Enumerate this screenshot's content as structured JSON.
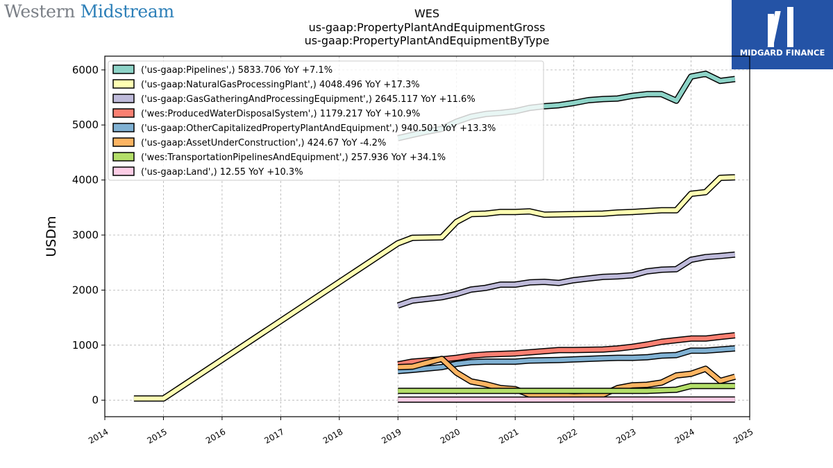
{
  "branding": {
    "left_logo": {
      "part1": "Western ",
      "part2": "Midstream"
    },
    "right_logo": {
      "text": "MIDGARD FINANCE",
      "bg_color": "#2453a6"
    }
  },
  "chart_data": {
    "type": "line",
    "title": "WES",
    "subtitle_lines": [
      "us-gaap:PropertyPlantAndEquipmentGross",
      "us-gaap:PropertyPlantAndEquipmentByType"
    ],
    "xlabel": "",
    "ylabel": "USDm",
    "xlim": [
      "2014-01-01",
      "2025-01-01"
    ],
    "ylim": [
      -300,
      6250
    ],
    "x_ticks": [
      "2014",
      "2015",
      "2016",
      "2017",
      "2018",
      "2019",
      "2020",
      "2021",
      "2022",
      "2023",
      "2024",
      "2025"
    ],
    "y_ticks": [
      0,
      1000,
      2000,
      3000,
      4000,
      5000,
      6000
    ],
    "grid": true,
    "legend_position": "top-left",
    "series": [
      {
        "name": "('us-gaap:Pipelines',) 5833.706 YoY +7.1%",
        "color": "#8dd3c7",
        "points": [
          [
            "2019-01-01",
            4760
          ],
          [
            "2019-04-01",
            4820
          ],
          [
            "2019-07-01",
            4880
          ],
          [
            "2019-10-01",
            4930
          ],
          [
            "2020-01-01",
            5060
          ],
          [
            "2020-04-01",
            5150
          ],
          [
            "2020-07-01",
            5200
          ],
          [
            "2020-10-01",
            5220
          ],
          [
            "2021-01-01",
            5250
          ],
          [
            "2021-04-01",
            5310
          ],
          [
            "2021-07-01",
            5340
          ],
          [
            "2021-10-01",
            5360
          ],
          [
            "2022-01-01",
            5400
          ],
          [
            "2022-04-01",
            5450
          ],
          [
            "2022-07-01",
            5470
          ],
          [
            "2022-10-01",
            5480
          ],
          [
            "2023-01-01",
            5530
          ],
          [
            "2023-04-01",
            5560
          ],
          [
            "2023-07-01",
            5560
          ],
          [
            "2023-10-01",
            5440
          ],
          [
            "2024-01-01",
            5880
          ],
          [
            "2024-04-01",
            5930
          ],
          [
            "2024-07-01",
            5800
          ],
          [
            "2024-10-01",
            5834
          ]
        ]
      },
      {
        "name": "('us-gaap:NaturalGasProcessingPlant',) 4048.496 YoY +17.3%",
        "color": "#ffffb3",
        "points": [
          [
            "2014-07-01",
            30
          ],
          [
            "2015-01-01",
            30
          ],
          [
            "2019-01-01",
            2850
          ],
          [
            "2019-04-01",
            2950
          ],
          [
            "2019-10-01",
            2960
          ],
          [
            "2020-01-01",
            3240
          ],
          [
            "2020-04-01",
            3380
          ],
          [
            "2020-07-01",
            3390
          ],
          [
            "2020-10-01",
            3420
          ],
          [
            "2021-01-01",
            3420
          ],
          [
            "2021-04-01",
            3430
          ],
          [
            "2021-07-01",
            3370
          ],
          [
            "2022-07-01",
            3390
          ],
          [
            "2022-10-01",
            3410
          ],
          [
            "2023-01-01",
            3420
          ],
          [
            "2023-07-01",
            3450
          ],
          [
            "2023-10-01",
            3450
          ],
          [
            "2024-01-01",
            3750
          ],
          [
            "2024-04-01",
            3780
          ],
          [
            "2024-07-01",
            4040
          ],
          [
            "2024-10-01",
            4048
          ]
        ]
      },
      {
        "name": "('us-gaap:GasGatheringAndProcessingEquipment',) 2645.117 YoY +11.6%",
        "color": "#bebada",
        "points": [
          [
            "2019-01-01",
            1720
          ],
          [
            "2019-04-01",
            1810
          ],
          [
            "2019-10-01",
            1870
          ],
          [
            "2020-01-01",
            1930
          ],
          [
            "2020-04-01",
            2010
          ],
          [
            "2020-07-01",
            2040
          ],
          [
            "2020-10-01",
            2100
          ],
          [
            "2021-01-01",
            2100
          ],
          [
            "2021-04-01",
            2140
          ],
          [
            "2021-07-01",
            2150
          ],
          [
            "2021-10-01",
            2130
          ],
          [
            "2022-01-01",
            2180
          ],
          [
            "2022-04-01",
            2210
          ],
          [
            "2022-07-01",
            2240
          ],
          [
            "2022-10-01",
            2250
          ],
          [
            "2023-01-01",
            2270
          ],
          [
            "2023-04-01",
            2340
          ],
          [
            "2023-07-01",
            2370
          ],
          [
            "2023-10-01",
            2380
          ],
          [
            "2024-01-01",
            2550
          ],
          [
            "2024-04-01",
            2600
          ],
          [
            "2024-07-01",
            2620
          ],
          [
            "2024-10-01",
            2645
          ]
        ]
      },
      {
        "name": "('wes:ProducedWaterDisposalSystem',) 1179.217 YoY +10.9%",
        "color": "#fb8072",
        "points": [
          [
            "2019-01-01",
            650
          ],
          [
            "2019-04-01",
            700
          ],
          [
            "2019-10-01",
            740
          ],
          [
            "2020-01-01",
            770
          ],
          [
            "2020-04-01",
            810
          ],
          [
            "2020-07-01",
            830
          ],
          [
            "2020-10-01",
            840
          ],
          [
            "2021-01-01",
            850
          ],
          [
            "2021-04-01",
            870
          ],
          [
            "2021-07-01",
            890
          ],
          [
            "2021-10-01",
            910
          ],
          [
            "2022-01-01",
            910
          ],
          [
            "2022-07-01",
            920
          ],
          [
            "2022-10-01",
            940
          ],
          [
            "2023-01-01",
            970
          ],
          [
            "2023-04-01",
            1010
          ],
          [
            "2023-07-01",
            1060
          ],
          [
            "2023-10-01",
            1090
          ],
          [
            "2024-01-01",
            1120
          ],
          [
            "2024-04-01",
            1120
          ],
          [
            "2024-07-01",
            1150
          ],
          [
            "2024-10-01",
            1179
          ]
        ]
      },
      {
        "name": "('us-gaap:OtherCapitalizedPropertyPlantAndEquipment',) 940.501 YoY +13.3%",
        "color": "#80b1d3",
        "points": [
          [
            "2019-01-01",
            530
          ],
          [
            "2019-04-01",
            550
          ],
          [
            "2019-10-01",
            600
          ],
          [
            "2020-01-01",
            660
          ],
          [
            "2020-04-01",
            690
          ],
          [
            "2020-07-01",
            700
          ],
          [
            "2021-01-01",
            700
          ],
          [
            "2021-04-01",
            720
          ],
          [
            "2021-10-01",
            730
          ],
          [
            "2022-01-01",
            740
          ],
          [
            "2022-07-01",
            760
          ],
          [
            "2022-10-01",
            770
          ],
          [
            "2023-01-01",
            770
          ],
          [
            "2023-04-01",
            780
          ],
          [
            "2023-07-01",
            810
          ],
          [
            "2023-10-01",
            820
          ],
          [
            "2024-01-01",
            900
          ],
          [
            "2024-04-01",
            900
          ],
          [
            "2024-07-01",
            920
          ],
          [
            "2024-10-01",
            941
          ]
        ]
      },
      {
        "name": "('us-gaap:AssetUnderConstruction',) 424.67 YoY -4.2%",
        "color": "#fdb462",
        "points": [
          [
            "2019-01-01",
            600
          ],
          [
            "2019-04-01",
            610
          ],
          [
            "2019-07-01",
            680
          ],
          [
            "2019-10-01",
            750
          ],
          [
            "2020-01-01",
            500
          ],
          [
            "2020-04-01",
            340
          ],
          [
            "2020-07-01",
            290
          ],
          [
            "2020-10-01",
            220
          ],
          [
            "2021-01-01",
            200
          ],
          [
            "2021-04-01",
            100
          ],
          [
            "2021-07-01",
            80
          ],
          [
            "2021-10-01",
            90
          ],
          [
            "2022-01-01",
            70
          ],
          [
            "2022-04-01",
            80
          ],
          [
            "2022-07-01",
            100
          ],
          [
            "2022-10-01",
            220
          ],
          [
            "2023-01-01",
            270
          ],
          [
            "2023-04-01",
            280
          ],
          [
            "2023-07-01",
            320
          ],
          [
            "2023-10-01",
            450
          ],
          [
            "2024-01-01",
            480
          ],
          [
            "2024-04-01",
            570
          ],
          [
            "2024-07-01",
            350
          ],
          [
            "2024-10-01",
            425
          ]
        ]
      },
      {
        "name": "('wes:TransportationPipelinesAndEquipment',) 257.936 YoY +34.1%",
        "color": "#b3de69",
        "points": [
          [
            "2019-01-01",
            170
          ],
          [
            "2023-04-01",
            170
          ],
          [
            "2023-07-01",
            180
          ],
          [
            "2023-10-01",
            190
          ],
          [
            "2024-01-01",
            258
          ],
          [
            "2024-10-01",
            258
          ]
        ]
      },
      {
        "name": "('us-gaap:Land',) 12.55 YoY +10.3%",
        "color": "#fccde5",
        "points": [
          [
            "2019-01-01",
            10
          ],
          [
            "2024-10-01",
            12.55
          ]
        ]
      }
    ]
  }
}
